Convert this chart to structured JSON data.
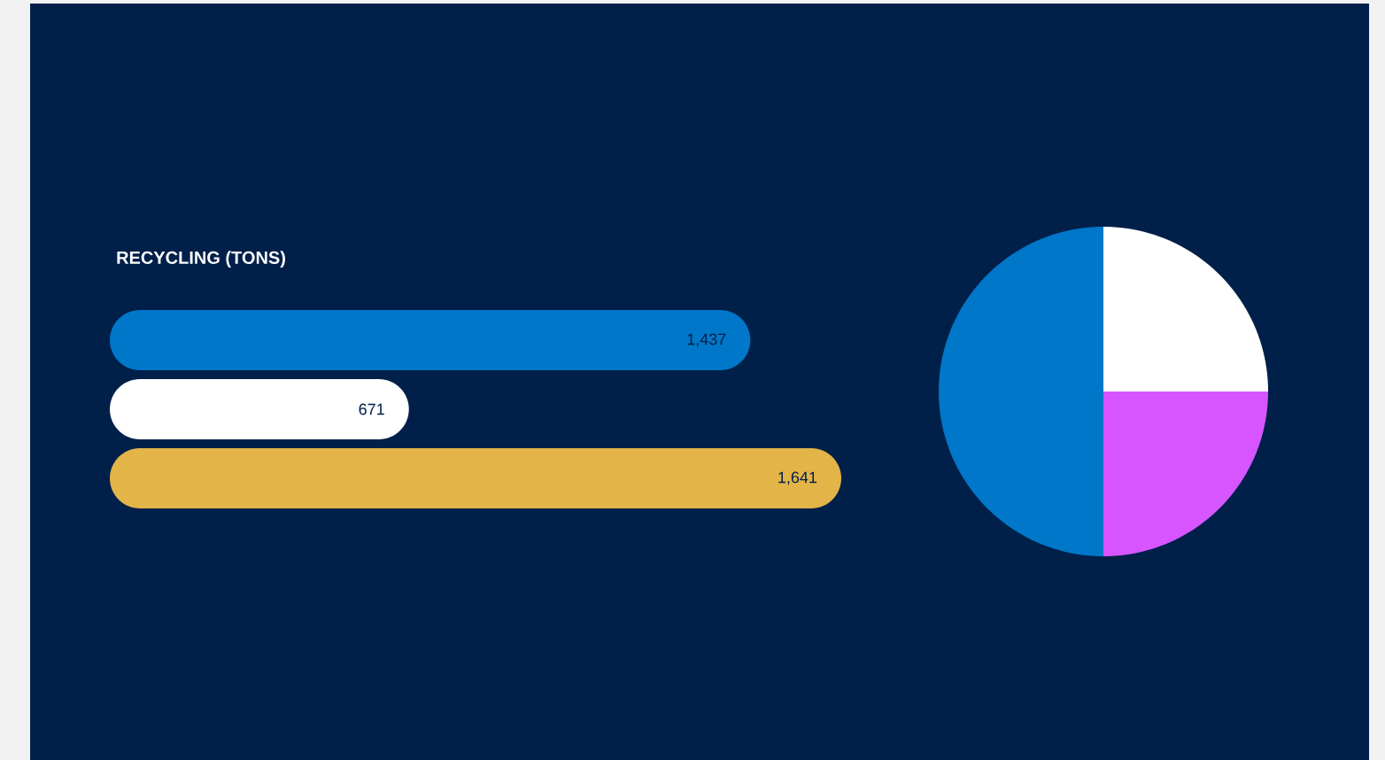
{
  "chart_data": [
    {
      "type": "bar",
      "orientation": "horizontal",
      "title": "RECYCLING (TONS)",
      "categories": [
        null,
        null,
        null
      ],
      "values": [
        1437,
        671,
        1641
      ],
      "colors": [
        "#0077c8",
        "#ffffff",
        "#e3b448"
      ],
      "value_labels": [
        "1,437",
        "671",
        "1,641"
      ]
    },
    {
      "type": "pie",
      "categories": [
        null,
        null,
        null
      ],
      "values": [
        25,
        25,
        50
      ],
      "colors": [
        "#ffffff",
        "#d655ff",
        "#0077c8"
      ]
    }
  ]
}
